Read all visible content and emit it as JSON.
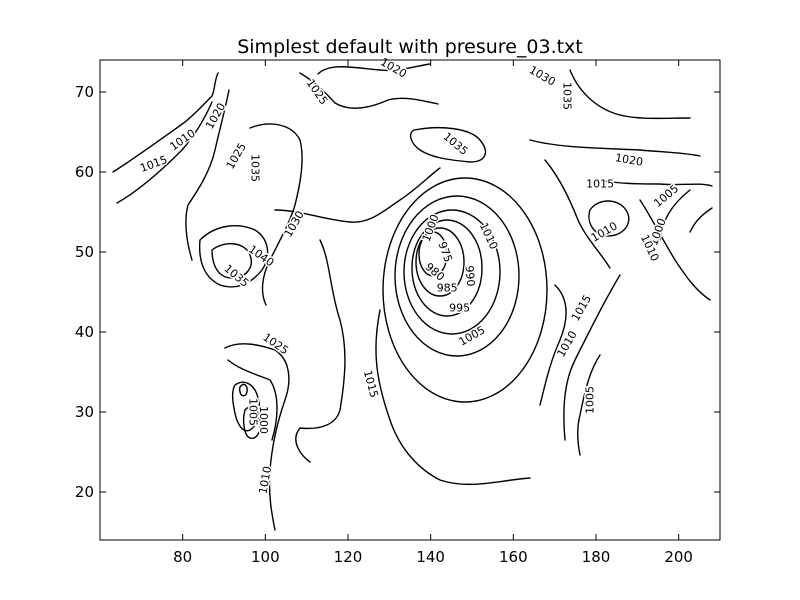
{
  "chart_data": {
    "type": "contour",
    "title": "Simplest default with presure_03.txt",
    "xlabel": "",
    "ylabel": "",
    "xlim": [
      60,
      210
    ],
    "ylim": [
      14,
      74
    ],
    "xticks": [
      80,
      100,
      120,
      140,
      160,
      180,
      200
    ],
    "yticks": [
      20,
      30,
      40,
      50,
      60,
      70
    ],
    "grid": false,
    "line_color": "#000000",
    "contour_labels": [
      {
        "text": "1010",
        "x": 80,
        "y": 64,
        "rot": -35
      },
      {
        "text": "1015",
        "x": 73,
        "y": 61,
        "rot": -20
      },
      {
        "text": "1020",
        "x": 88,
        "y": 67,
        "rot": -60
      },
      {
        "text": "1025",
        "x": 93,
        "y": 62,
        "rot": -60
      },
      {
        "text": "1035",
        "x": 97.5,
        "y": 60.5,
        "rot": 90
      },
      {
        "text": "1030",
        "x": 107,
        "y": 53.5,
        "rot": -60
      },
      {
        "text": "1040",
        "x": 99,
        "y": 49.5,
        "rot": 35
      },
      {
        "text": "1035",
        "x": 93,
        "y": 47,
        "rot": 40
      },
      {
        "text": "1025",
        "x": 112.5,
        "y": 70,
        "rot": 55
      },
      {
        "text": "1020",
        "x": 131,
        "y": 73,
        "rot": 30
      },
      {
        "text": "1030",
        "x": 167,
        "y": 72,
        "rot": 30
      },
      {
        "text": "1035",
        "x": 173,
        "y": 69.5,
        "rot": 90
      },
      {
        "text": "1035",
        "x": 146,
        "y": 63.5,
        "rot": 40
      },
      {
        "text": "1020",
        "x": 188,
        "y": 61.5,
        "rot": 10
      },
      {
        "text": "1015",
        "x": 181,
        "y": 58.5,
        "rot": 0
      },
      {
        "text": "1010",
        "x": 182,
        "y": 52.5,
        "rot": -30
      },
      {
        "text": "1005",
        "x": 197,
        "y": 57,
        "rot": -40
      },
      {
        "text": "1000",
        "x": 195,
        "y": 52.5,
        "rot": -70
      },
      {
        "text": "1010",
        "x": 193,
        "y": 50.5,
        "rot": 65
      },
      {
        "text": "1010",
        "x": 154,
        "y": 52,
        "rot": 65
      },
      {
        "text": "1000",
        "x": 140,
        "y": 53,
        "rot": -70
      },
      {
        "text": "975",
        "x": 143.5,
        "y": 50,
        "rot": 70
      },
      {
        "text": "980",
        "x": 141,
        "y": 47.5,
        "rot": 40
      },
      {
        "text": "985",
        "x": 144,
        "y": 45.5,
        "rot": 0
      },
      {
        "text": "990",
        "x": 149.5,
        "y": 47,
        "rot": 85
      },
      {
        "text": "995",
        "x": 147,
        "y": 43,
        "rot": 0
      },
      {
        "text": "1005",
        "x": 150,
        "y": 39.5,
        "rot": -30
      },
      {
        "text": "1015",
        "x": 125.5,
        "y": 33.5,
        "rot": 75
      },
      {
        "text": "1025",
        "x": 102.5,
        "y": 38.5,
        "rot": 35
      },
      {
        "text": "1005",
        "x": 97,
        "y": 30,
        "rot": 90
      },
      {
        "text": "1000",
        "x": 99.5,
        "y": 29,
        "rot": 90
      },
      {
        "text": "1010",
        "x": 100,
        "y": 21.5,
        "rot": -80
      },
      {
        "text": "1015",
        "x": 176.5,
        "y": 43,
        "rot": -60
      },
      {
        "text": "1010",
        "x": 173,
        "y": 38.5,
        "rot": -60
      },
      {
        "text": "1005",
        "x": 178.5,
        "y": 31.5,
        "rot": -90
      }
    ]
  }
}
